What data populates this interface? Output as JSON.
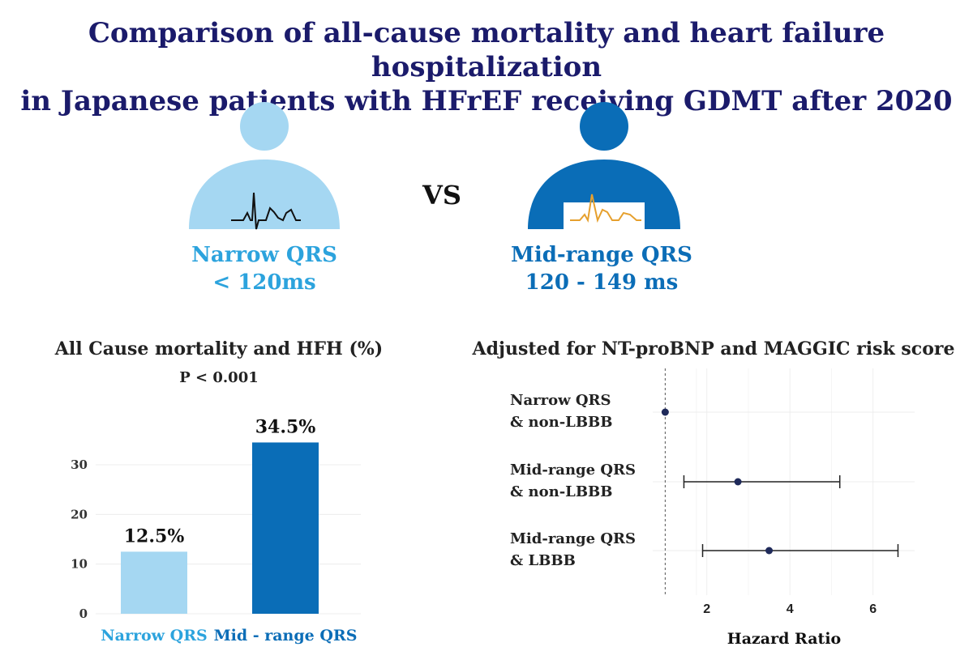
{
  "title_line1": "Comparison of all-cause mortality and heart failure hospitalization",
  "title_line2": "in Japanese patients with HFrEF receiving GDMT after 2020",
  "vs_label": "VS",
  "groups": [
    {
      "name": "Narrow QRS",
      "range": "< 120ms",
      "color": "#2ca3dd",
      "icon_color": "#a5d7f2",
      "ecg_color": "#111111"
    },
    {
      "name": "Mid-range QRS",
      "range": "120 - 149 ms",
      "color": "#0b6db7",
      "icon_color": "#0a6db7",
      "ecg_color": "#e6a02e"
    }
  ],
  "chart_data": [
    {
      "type": "bar",
      "title": "All Cause mortality and HFH (%)",
      "annotation": "P < 0.001",
      "categories": [
        "Narrow QRS",
        "Mid - range QRS"
      ],
      "values": [
        12.5,
        34.5
      ],
      "value_labels": [
        "12.5%",
        "34.5%"
      ],
      "colors": [
        "#a5d7f2",
        "#0a6db7"
      ],
      "category_label_colors": [
        "#2ca3dd",
        "#0b6db7"
      ],
      "ylim": [
        0,
        38
      ],
      "yticks": [
        0,
        10,
        20,
        30
      ],
      "grid": true
    },
    {
      "type": "scatter",
      "title": "Adjusted for NT-proBNP and MAGGIC risk score",
      "xlabel": "Hazard Ratio",
      "xlim": [
        0.7,
        7.0
      ],
      "xticks": [
        2,
        4,
        6
      ],
      "reference_line": 1,
      "rows": [
        {
          "label_line1": "Narrow QRS",
          "label_line2": "& non-LBBB",
          "hr": 1.0,
          "lower": 1.0,
          "upper": 1.0
        },
        {
          "label_line1": "Mid-range QRS",
          "label_line2": "& non-LBBB",
          "hr": 2.75,
          "lower": 1.45,
          "upper": 5.2
        },
        {
          "label_line1": "Mid-range QRS",
          "label_line2": "& LBBB",
          "hr": 3.5,
          "lower": 1.9,
          "upper": 6.6
        }
      ],
      "point_color": "#1f2a5a",
      "grid": true
    }
  ]
}
